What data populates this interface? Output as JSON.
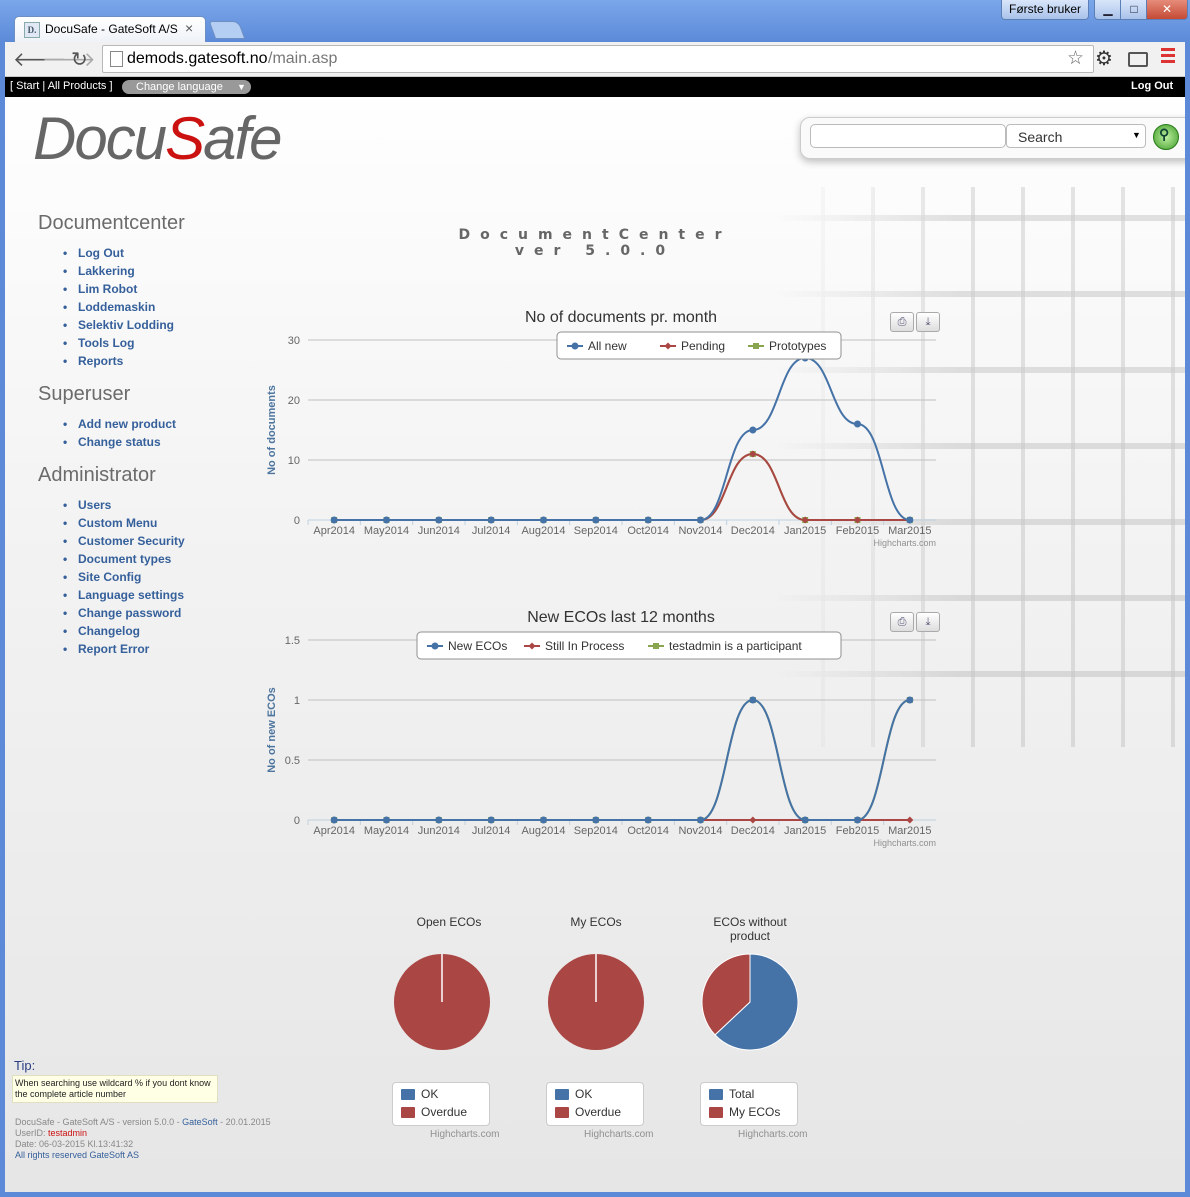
{
  "browser": {
    "tab_title": "DocuSafe - GateSoft A/S",
    "favicon_text": "D.",
    "user_badge": "Første bruker",
    "url_host": "demods.gatesoft.no",
    "url_path": "/main.asp"
  },
  "topbar": {
    "links": "[ Start | All Products ]",
    "language_select": "Change language",
    "logout": "Log Out"
  },
  "logo": {
    "part1": "Docu",
    "part2": "S",
    "part3": "afe"
  },
  "search": {
    "input_value": "",
    "select_label": "Search"
  },
  "sidebar": {
    "sections": [
      {
        "title": "Documentcenter",
        "items": [
          "Log Out",
          "Lakkering",
          "Lim Robot",
          "Loddemaskin",
          "Selektiv Lodding",
          "Tools Log",
          "Reports"
        ]
      },
      {
        "title": "Superuser",
        "items": [
          "Add new product",
          "Change status"
        ]
      },
      {
        "title": "Administrator",
        "items": [
          "Users",
          "Custom Menu",
          "Customer Security",
          "Document types",
          "Site Config",
          "Language settings",
          "Change password",
          "Changelog",
          "Report Error"
        ]
      }
    ]
  },
  "header": {
    "line1": "DocumentCenter",
    "line2": "ver 5.0.0"
  },
  "tip": {
    "title": "Tip:",
    "text": "When searching use wildcard % if you dont know the complete article number"
  },
  "footer": {
    "line1_prefix": "DocuSafe - GateSoft A/S - version 5.0.0 - ",
    "line1_link": "GateSoft",
    "line1_suffix": " - 20.01.2015",
    "userid_label": "UserID: ",
    "userid": "testadmin",
    "date_line": "Date: 06-03-2015  Kl.13:41:32",
    "rights": "All rights reserved GateSoft AS"
  },
  "credits": "Highcharts.com",
  "colors": {
    "blue": "#4572a7",
    "red": "#aa4643",
    "green": "#89a54e"
  },
  "chart_data": [
    {
      "type": "line",
      "title": "No of documents pr. month",
      "ylabel": "No of documents",
      "xlabel": "",
      "ylim": [
        0,
        30
      ],
      "yticks": [
        "0",
        "10",
        "20",
        "30"
      ],
      "categories": [
        "Apr2014",
        "May2014",
        "Jun2014",
        "Jul2014",
        "Aug2014",
        "Sep2014",
        "Oct2014",
        "Nov2014",
        "Dec2014",
        "Jan2015",
        "Feb2015",
        "Mar2015"
      ],
      "series": [
        {
          "name": "All new",
          "color": "#4572a7",
          "values": [
            0,
            0,
            0,
            0,
            0,
            0,
            0,
            0,
            15,
            27,
            16,
            0
          ]
        },
        {
          "name": "Pending",
          "color": "#aa4643",
          "values": [
            0,
            0,
            0,
            0,
            0,
            0,
            0,
            0,
            11,
            0,
            0,
            0
          ]
        },
        {
          "name": "Prototypes",
          "color": "#89a54e",
          "values": [
            0,
            0,
            0,
            0,
            0,
            0,
            0,
            0,
            11,
            0,
            0,
            0
          ]
        }
      ]
    },
    {
      "type": "line",
      "title": "New ECOs last 12 months",
      "ylabel": "No of new ECOs",
      "xlabel": "",
      "ylim": [
        0,
        1.5
      ],
      "yticks": [
        "0",
        "0.5",
        "1",
        "1.5"
      ],
      "categories": [
        "Apr2014",
        "May2014",
        "Jun2014",
        "Jul2014",
        "Aug2014",
        "Sep2014",
        "Oct2014",
        "Nov2014",
        "Dec2014",
        "Jan2015",
        "Feb2015",
        "Mar2015"
      ],
      "series": [
        {
          "name": "New ECOs",
          "color": "#4572a7",
          "values": [
            0,
            0,
            0,
            0,
            0,
            0,
            0,
            0,
            1,
            0,
            0,
            1
          ]
        },
        {
          "name": "Still In Process",
          "color": "#aa4643",
          "values": [
            0,
            0,
            0,
            0,
            0,
            0,
            0,
            0,
            0,
            0,
            0,
            0
          ]
        },
        {
          "name": "testadmin is a participant",
          "color": "#89a54e",
          "values": [
            0,
            0,
            0,
            0,
            0,
            0,
            0,
            0,
            1,
            0,
            0,
            1
          ]
        }
      ]
    },
    {
      "type": "pie",
      "title": "Open ECOs",
      "slices": [
        {
          "name": "OK",
          "value": 0,
          "color": "#4572a7"
        },
        {
          "name": "Overdue",
          "value": 100,
          "color": "#aa4643"
        }
      ]
    },
    {
      "type": "pie",
      "title": "My ECOs",
      "slices": [
        {
          "name": "OK",
          "value": 0,
          "color": "#4572a7"
        },
        {
          "name": "Overdue",
          "value": 100,
          "color": "#aa4643"
        }
      ]
    },
    {
      "type": "pie",
      "title": "ECOs without product",
      "slices": [
        {
          "name": "Total",
          "value": 63,
          "color": "#4572a7"
        },
        {
          "name": "My ECOs",
          "value": 37,
          "color": "#aa4643"
        }
      ]
    }
  ]
}
